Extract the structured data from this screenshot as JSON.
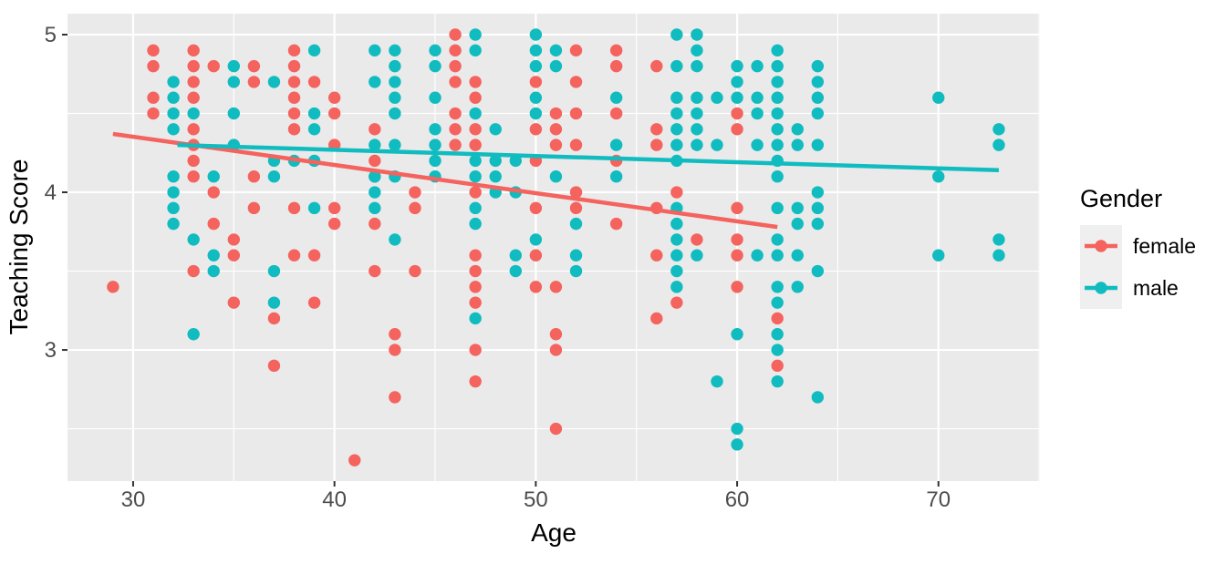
{
  "figure": {
    "background": "#ffffff",
    "panel_background": "#EAEAEA",
    "grid_color": "#FFFFFF",
    "tick_mark_color": "#333333",
    "tick_label_color": "#4d4d4d"
  },
  "legend": {
    "title": "Gender",
    "position": "right",
    "key_background": "#EFEFEF",
    "entries": [
      {
        "label": "female",
        "color": "#F4635D"
      },
      {
        "label": "male",
        "color": "#10BCBF"
      }
    ]
  },
  "chart_data": {
    "type": "scatter",
    "title": "",
    "xlabel": "Age",
    "ylabel": "Teaching Score",
    "xlim": [
      26.74,
      75.04
    ],
    "ylim": [
      2.168,
      5.133
    ],
    "x_ticks": [
      30,
      40,
      50,
      60,
      70
    ],
    "x_minor_ticks": [
      35,
      45,
      55,
      65,
      75
    ],
    "y_ticks": [
      3,
      4,
      5
    ],
    "y_minor_ticks": [
      2.5,
      3.5,
      4.5
    ],
    "grid": true,
    "point_radius": 6.7,
    "trend_line_width": 4.5,
    "series": [
      {
        "name": "female",
        "color": "#F4635D",
        "trend": {
          "x1": 29,
          "y1": 4.37,
          "x2": 62,
          "y2": 3.78
        },
        "points": [
          [
            29,
            3.4
          ],
          [
            31,
            4.9
          ],
          [
            31,
            4.8
          ],
          [
            31,
            4.6
          ],
          [
            31,
            4.5
          ],
          [
            33,
            4.9
          ],
          [
            33,
            4.8
          ],
          [
            33,
            4.7
          ],
          [
            33,
            4.6
          ],
          [
            33,
            4.4
          ],
          [
            33,
            4.3
          ],
          [
            33,
            4.2
          ],
          [
            33,
            4.1
          ],
          [
            33,
            3.5
          ],
          [
            34,
            4.8
          ],
          [
            34,
            4.0
          ],
          [
            34,
            3.8
          ],
          [
            35,
            3.7
          ],
          [
            35,
            3.6
          ],
          [
            35,
            3.3
          ],
          [
            36,
            4.8
          ],
          [
            36,
            4.7
          ],
          [
            36,
            4.1
          ],
          [
            36,
            3.9
          ],
          [
            37,
            3.2
          ],
          [
            37,
            2.9
          ],
          [
            38,
            4.9
          ],
          [
            38,
            4.8
          ],
          [
            38,
            4.7
          ],
          [
            38,
            4.6
          ],
          [
            38,
            4.5
          ],
          [
            38,
            4.4
          ],
          [
            38,
            3.9
          ],
          [
            38,
            3.6
          ],
          [
            39,
            4.7
          ],
          [
            39,
            3.6
          ],
          [
            39,
            3.3
          ],
          [
            40,
            4.6
          ],
          [
            40,
            4.5
          ],
          [
            40,
            4.3
          ],
          [
            40,
            3.9
          ],
          [
            40,
            3.8
          ],
          [
            41,
            2.3
          ],
          [
            42,
            4.4
          ],
          [
            42,
            4.2
          ],
          [
            42,
            4.1
          ],
          [
            42,
            3.8
          ],
          [
            42,
            3.5
          ],
          [
            43,
            3.1
          ],
          [
            43,
            3.0
          ],
          [
            43,
            2.7
          ],
          [
            44,
            4.0
          ],
          [
            44,
            3.9
          ],
          [
            44,
            3.5
          ],
          [
            46,
            5.0
          ],
          [
            46,
            4.9
          ],
          [
            46,
            4.8
          ],
          [
            46,
            4.7
          ],
          [
            46,
            4.5
          ],
          [
            46,
            4.4
          ],
          [
            46,
            4.3
          ],
          [
            47,
            4.7
          ],
          [
            47,
            4.6
          ],
          [
            47,
            4.4
          ],
          [
            47,
            4.3
          ],
          [
            47,
            4.0
          ],
          [
            47,
            3.6
          ],
          [
            47,
            3.5
          ],
          [
            47,
            3.4
          ],
          [
            47,
            3.3
          ],
          [
            47,
            3.0
          ],
          [
            47,
            2.8
          ],
          [
            50,
            4.7
          ],
          [
            50,
            4.4
          ],
          [
            50,
            4.2
          ],
          [
            50,
            3.9
          ],
          [
            50,
            3.6
          ],
          [
            50,
            3.4
          ],
          [
            51,
            4.5
          ],
          [
            51,
            4.4
          ],
          [
            51,
            4.3
          ],
          [
            51,
            3.4
          ],
          [
            51,
            3.1
          ],
          [
            51,
            3.0
          ],
          [
            51,
            2.5
          ],
          [
            52,
            4.9
          ],
          [
            52,
            4.7
          ],
          [
            52,
            4.5
          ],
          [
            52,
            4.3
          ],
          [
            52,
            4.0
          ],
          [
            52,
            3.9
          ],
          [
            54,
            4.9
          ],
          [
            54,
            4.8
          ],
          [
            54,
            4.5
          ],
          [
            54,
            4.2
          ],
          [
            54,
            3.8
          ],
          [
            56,
            4.8
          ],
          [
            56,
            4.4
          ],
          [
            56,
            4.3
          ],
          [
            56,
            3.9
          ],
          [
            56,
            3.6
          ],
          [
            56,
            3.2
          ],
          [
            57,
            4.0
          ],
          [
            57,
            3.3
          ],
          [
            58,
            3.7
          ],
          [
            60,
            4.5
          ],
          [
            60,
            4.4
          ],
          [
            60,
            3.9
          ],
          [
            60,
            3.7
          ],
          [
            60,
            3.6
          ],
          [
            60,
            3.4
          ],
          [
            62,
            3.2
          ],
          [
            62,
            2.9
          ]
        ]
      },
      {
        "name": "male",
        "color": "#10BCBF",
        "trend": {
          "x1": 32.2,
          "y1": 4.3,
          "x2": 73,
          "y2": 4.14
        },
        "points": [
          [
            32,
            4.7
          ],
          [
            32,
            4.6
          ],
          [
            32,
            4.5
          ],
          [
            32,
            4.4
          ],
          [
            32,
            4.1
          ],
          [
            32,
            4.0
          ],
          [
            32,
            3.9
          ],
          [
            32,
            3.8
          ],
          [
            33,
            4.5
          ],
          [
            33,
            3.7
          ],
          [
            33,
            3.1
          ],
          [
            34,
            4.1
          ],
          [
            34,
            3.6
          ],
          [
            34,
            3.5
          ],
          [
            35,
            4.8
          ],
          [
            35,
            4.7
          ],
          [
            35,
            4.5
          ],
          [
            35,
            4.3
          ],
          [
            37,
            4.7
          ],
          [
            37,
            4.2
          ],
          [
            37,
            4.1
          ],
          [
            37,
            3.5
          ],
          [
            37,
            3.3
          ],
          [
            38,
            4.2
          ],
          [
            39,
            4.9
          ],
          [
            39,
            4.5
          ],
          [
            39,
            4.4
          ],
          [
            39,
            4.2
          ],
          [
            39,
            3.9
          ],
          [
            42,
            4.9
          ],
          [
            42,
            4.7
          ],
          [
            42,
            4.3
          ],
          [
            42,
            4.1
          ],
          [
            42,
            4.0
          ],
          [
            42,
            3.9
          ],
          [
            43,
            4.9
          ],
          [
            43,
            4.8
          ],
          [
            43,
            4.7
          ],
          [
            43,
            4.6
          ],
          [
            43,
            4.5
          ],
          [
            43,
            4.3
          ],
          [
            43,
            4.1
          ],
          [
            43,
            3.7
          ],
          [
            45,
            4.9
          ],
          [
            45,
            4.8
          ],
          [
            45,
            4.6
          ],
          [
            45,
            4.4
          ],
          [
            45,
            4.3
          ],
          [
            45,
            4.2
          ],
          [
            45,
            4.1
          ],
          [
            47,
            5.0
          ],
          [
            47,
            4.9
          ],
          [
            47,
            4.5
          ],
          [
            47,
            4.2
          ],
          [
            47,
            4.1
          ],
          [
            47,
            3.9
          ],
          [
            47,
            3.8
          ],
          [
            47,
            3.2
          ],
          [
            48,
            4.4
          ],
          [
            48,
            4.2
          ],
          [
            48,
            4.1
          ],
          [
            48,
            4.0
          ],
          [
            49,
            4.2
          ],
          [
            49,
            4.0
          ],
          [
            49,
            3.6
          ],
          [
            49,
            3.5
          ],
          [
            50,
            5.0
          ],
          [
            50,
            4.9
          ],
          [
            50,
            4.8
          ],
          [
            50,
            4.6
          ],
          [
            50,
            4.5
          ],
          [
            50,
            3.7
          ],
          [
            51,
            4.9
          ],
          [
            51,
            4.8
          ],
          [
            51,
            4.1
          ],
          [
            52,
            3.8
          ],
          [
            52,
            3.6
          ],
          [
            52,
            3.5
          ],
          [
            54,
            4.6
          ],
          [
            54,
            4.3
          ],
          [
            54,
            4.1
          ],
          [
            57,
            5.0
          ],
          [
            57,
            4.8
          ],
          [
            57,
            4.6
          ],
          [
            57,
            4.5
          ],
          [
            57,
            4.4
          ],
          [
            57,
            4.3
          ],
          [
            57,
            4.2
          ],
          [
            57,
            3.9
          ],
          [
            57,
            3.8
          ],
          [
            57,
            3.7
          ],
          [
            57,
            3.6
          ],
          [
            57,
            3.5
          ],
          [
            57,
            3.4
          ],
          [
            58,
            5.0
          ],
          [
            58,
            4.9
          ],
          [
            58,
            4.8
          ],
          [
            58,
            4.6
          ],
          [
            58,
            4.5
          ],
          [
            58,
            4.4
          ],
          [
            58,
            4.3
          ],
          [
            58,
            3.6
          ],
          [
            59,
            4.6
          ],
          [
            59,
            4.3
          ],
          [
            59,
            2.8
          ],
          [
            60,
            4.8
          ],
          [
            60,
            4.7
          ],
          [
            60,
            4.6
          ],
          [
            60,
            3.1
          ],
          [
            60,
            2.5
          ],
          [
            60,
            2.4
          ],
          [
            61,
            4.8
          ],
          [
            61,
            4.6
          ],
          [
            61,
            4.5
          ],
          [
            61,
            4.3
          ],
          [
            61,
            3.6
          ],
          [
            62,
            4.9
          ],
          [
            62,
            4.8
          ],
          [
            62,
            4.7
          ],
          [
            62,
            4.6
          ],
          [
            62,
            4.5
          ],
          [
            62,
            4.4
          ],
          [
            62,
            4.3
          ],
          [
            62,
            4.2
          ],
          [
            62,
            4.1
          ],
          [
            62,
            3.9
          ],
          [
            62,
            3.7
          ],
          [
            62,
            3.6
          ],
          [
            62,
            3.4
          ],
          [
            62,
            3.3
          ],
          [
            62,
            3.1
          ],
          [
            62,
            3.0
          ],
          [
            62,
            2.8
          ],
          [
            63,
            4.4
          ],
          [
            63,
            4.3
          ],
          [
            63,
            3.9
          ],
          [
            63,
            3.8
          ],
          [
            63,
            3.6
          ],
          [
            63,
            3.4
          ],
          [
            64,
            4.8
          ],
          [
            64,
            4.7
          ],
          [
            64,
            4.6
          ],
          [
            64,
            4.5
          ],
          [
            64,
            4.3
          ],
          [
            64,
            4.0
          ],
          [
            64,
            3.9
          ],
          [
            64,
            3.8
          ],
          [
            64,
            3.5
          ],
          [
            64,
            2.7
          ],
          [
            70,
            4.6
          ],
          [
            70,
            4.1
          ],
          [
            70,
            3.6
          ],
          [
            73,
            4.4
          ],
          [
            73,
            4.3
          ],
          [
            73,
            3.7
          ],
          [
            73,
            3.6
          ]
        ]
      }
    ]
  }
}
